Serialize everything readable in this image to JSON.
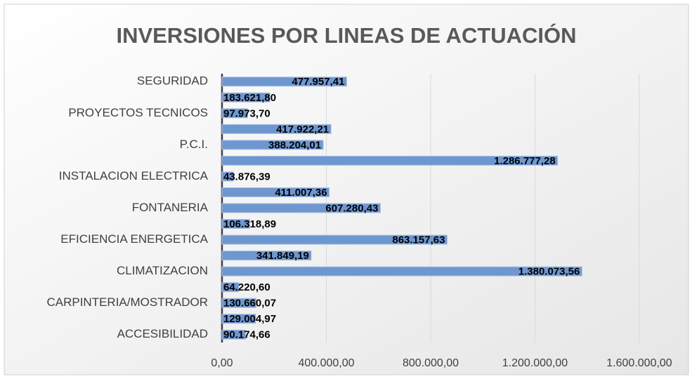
{
  "chart_data": {
    "type": "bar",
    "orientation": "horizontal",
    "title": "INVERSIONES POR LINEAS DE ACTUACIÓN",
    "categories": [
      "ACCESIBILIDAD",
      null,
      "CARPINTERIA/MOSTRADOR",
      null,
      "CLIMATIZACION",
      null,
      "EFICIENCIA ENERGETICA",
      null,
      "FONTANERIA",
      null,
      "INSTALACION ELECTRICA",
      null,
      "P.C.I.",
      null,
      "PROYECTOS TECNICOS",
      null,
      "SEGURIDAD"
    ],
    "values": [
      90174.66,
      129004.97,
      130660.07,
      64220.6,
      1380073.56,
      341849.19,
      863157.63,
      106318.89,
      607280.43,
      411007.36,
      43876.39,
      1286777.28,
      388204.01,
      417922.21,
      97973.7,
      183621.8,
      477957.41
    ],
    "value_labels": [
      "90.174,66",
      "129.004,97",
      "130.660,07",
      "64.220,60",
      "1.380.073,56",
      "341.849,19",
      "863.157,63",
      "106.318,89",
      "607.280,43",
      "411.007,36",
      "43.876,39",
      "1.286.777,28",
      "388.204,01",
      "417.922,21",
      "97.973,70",
      "183.621,80",
      "477.957,41"
    ],
    "color": "#6f97cf",
    "xlim": [
      0,
      1600000
    ],
    "xticks": [
      {
        "value": 0,
        "label": "0,00"
      },
      {
        "value": 400000,
        "label": "400.000,00"
      },
      {
        "value": 800000,
        "label": "800.000,00"
      },
      {
        "value": 1200000,
        "label": "1.200.000,00"
      },
      {
        "value": 1600000,
        "label": "1.600.000,00"
      }
    ],
    "grid": true
  }
}
